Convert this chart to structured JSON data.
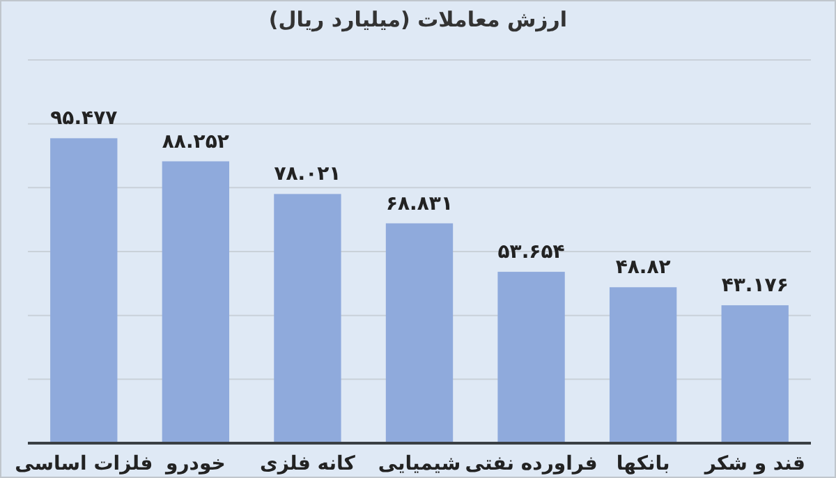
{
  "chart_data": {
    "type": "bar",
    "title": "ارزش معاملات (میلیارد ریال)",
    "categories": [
      "فلزات اساسی",
      "خودرو",
      "کانه فلزی",
      "شیمیایی",
      "فراورده نفتی",
      "بانکها",
      "قند و شکر"
    ],
    "values": [
      95.477,
      88.252,
      78.021,
      68.831,
      53.654,
      48.82,
      43.176
    ],
    "value_labels": [
      "۹۵.۴۷۷",
      "۸۸.۲۵۲",
      "۷۸.۰۲۱",
      "۶۸.۸۳۱",
      "۵۳.۶۵۴",
      "۴۸.۸۲",
      "۴۳.۱۷۶"
    ],
    "color": "#8faadc",
    "ylim": [
      0,
      120
    ],
    "yticks": [
      {
        "value": 0,
        "label": null
      },
      {
        "value": 20,
        "label": null
      },
      {
        "value": 40,
        "label": null
      },
      {
        "value": 60,
        "label": null
      },
      {
        "value": 80,
        "label": null
      },
      {
        "value": 100,
        "label": null
      },
      {
        "value": 120,
        "label": null
      }
    ],
    "grid": "y",
    "tick_labels": "x"
  }
}
